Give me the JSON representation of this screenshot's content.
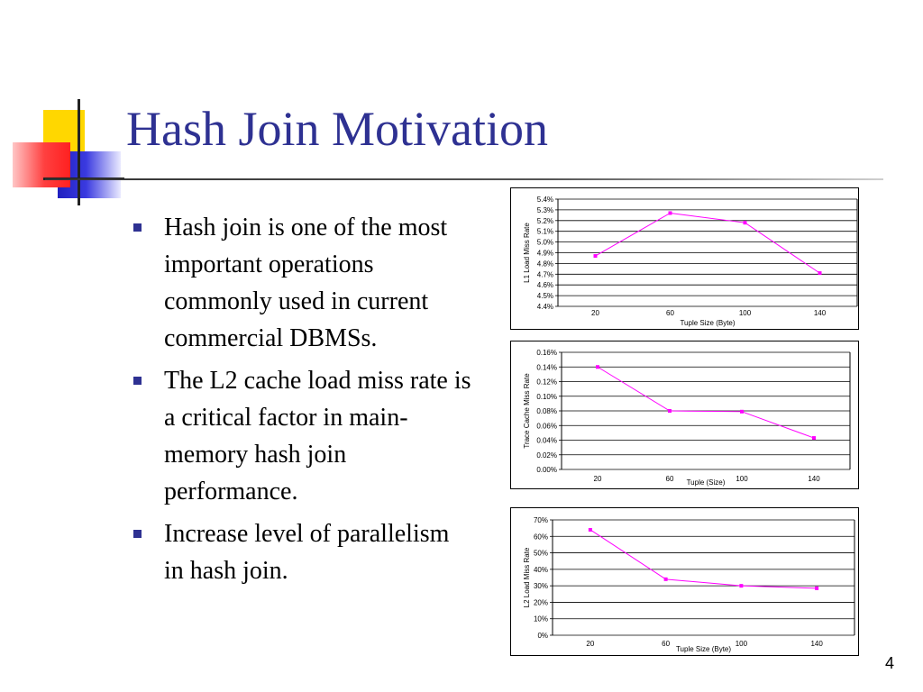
{
  "slide": {
    "title": "Hash Join Motivation",
    "page_number": "4",
    "bullets": [
      "Hash join is one of the most important operations commonly used in current commercial DBMSs.",
      "The L2 cache load miss rate is a critical factor in main-memory hash join performance.",
      "Increase level of parallelism in hash join."
    ],
    "colors": {
      "title": "#2e3192",
      "bullet": "#2e3192",
      "series": "#ff00ff"
    }
  },
  "chart_data": [
    {
      "type": "line",
      "categories": [
        "20",
        "60",
        "100",
        "140"
      ],
      "series": [
        {
          "values": [
            4.87,
            5.27,
            5.18,
            4.71
          ]
        }
      ],
      "ylabel": "L1 Load Miss Rate",
      "xlabel": "Tuple Size (Byte)",
      "ylim": [
        4.4,
        5.4
      ],
      "yticks": [
        "5.4%",
        "5.3%",
        "5.2%",
        "5.1%",
        "5.0%",
        "4.9%",
        "4.8%",
        "4.7%",
        "4.6%",
        "4.5%",
        "4.4%"
      ],
      "grid": true
    },
    {
      "type": "line",
      "categories": [
        "20",
        "60",
        "100",
        "140"
      ],
      "series": [
        {
          "values": [
            0.14,
            0.08,
            0.079,
            0.043
          ]
        }
      ],
      "ylabel": "Trace Cache Miss Rate",
      "xlabel": "Tuple (Size)",
      "ylim": [
        0,
        0.16
      ],
      "yticks": [
        "0.16%",
        "0.14%",
        "0.12%",
        "0.10%",
        "0.08%",
        "0.06%",
        "0.04%",
        "0.02%",
        "0.00%"
      ],
      "grid": true
    },
    {
      "type": "line",
      "categories": [
        "20",
        "60",
        "100",
        "140"
      ],
      "series": [
        {
          "values": [
            64,
            34,
            30,
            28.5
          ]
        }
      ],
      "ylabel": "L2 Load Miss Rate",
      "xlabel": "Tuple Size (Byte)",
      "ylim": [
        0,
        70
      ],
      "yticks": [
        "70%",
        "60%",
        "50%",
        "40%",
        "30%",
        "20%",
        "10%",
        "0%"
      ],
      "grid": true
    }
  ]
}
